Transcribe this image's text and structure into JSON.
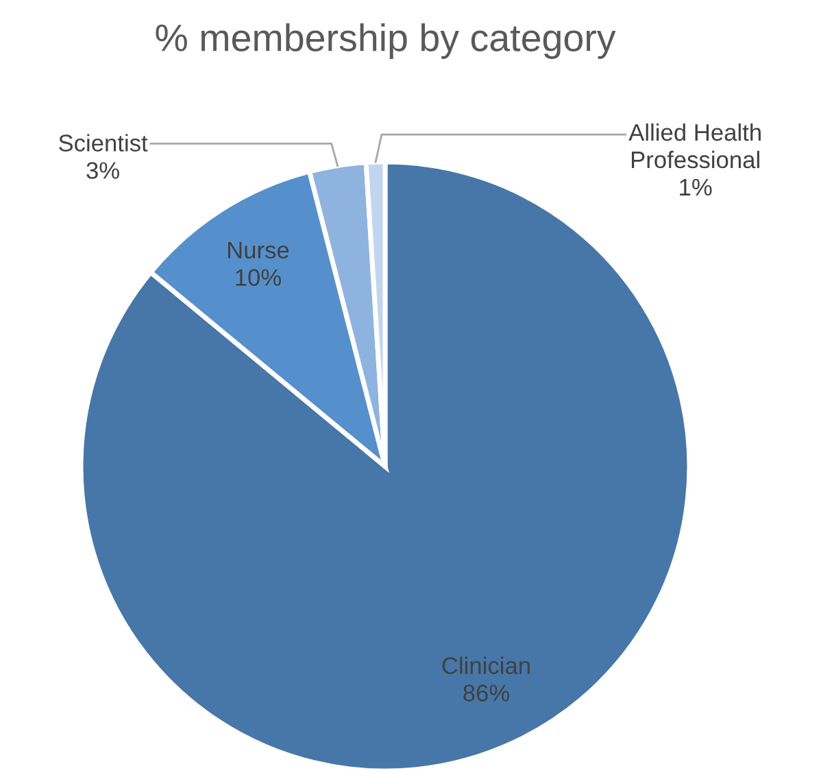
{
  "chart_data": {
    "type": "pie",
    "title": "% membership by category",
    "categories": [
      "Clinician",
      "Nurse",
      "Scientist",
      "Allied Health\nProfessional"
    ],
    "values": [
      86,
      10,
      3,
      1
    ],
    "colors": [
      "#4677a8",
      "#5690cc",
      "#8fb3df",
      "#c2d5ee"
    ],
    "value_labels": [
      "86%",
      "10%",
      "3%",
      "1%"
    ],
    "legend": false
  }
}
